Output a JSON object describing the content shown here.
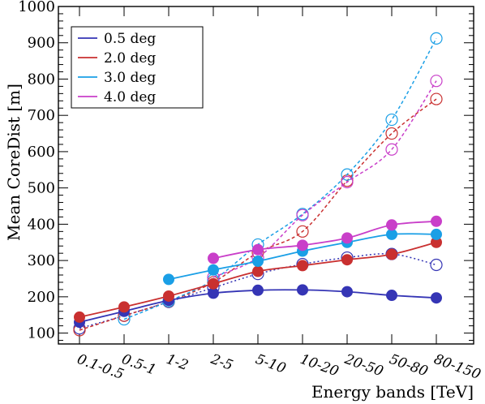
{
  "chart_data": {
    "type": "line",
    "xlabel": "Energy bands [TeV]",
    "ylabel": "Mean CoreDist [m]",
    "ylim": [
      70,
      1000
    ],
    "yticks": [
      100,
      200,
      300,
      400,
      500,
      600,
      700,
      800,
      900,
      1000
    ],
    "categories": [
      "0.1-0.5",
      "0.5-1",
      "1-2",
      "2-5",
      "5-10",
      "10-20",
      "20-50",
      "50-80",
      "80-150"
    ],
    "legend_position": "top-left",
    "series": [
      {
        "name": "0.5 deg",
        "color": "#3535b5",
        "marker": "filled",
        "line": "solid",
        "values": [
          130,
          160,
          190,
          210,
          218,
          219,
          214,
          204,
          197
        ]
      },
      {
        "name": "2.0 deg",
        "color": "#c93030",
        "marker": "filled",
        "line": "solid",
        "values": [
          144,
          172,
          202,
          236,
          270,
          286,
          302,
          317,
          350
        ]
      },
      {
        "name": "3.0 deg",
        "color": "#1a9fe6",
        "marker": "filled",
        "line": "solid",
        "values": [
          null,
          null,
          248,
          274,
          298,
          326,
          350,
          372,
          372
        ]
      },
      {
        "name": "4.0 deg",
        "color": "#c93fc9",
        "marker": "filled",
        "line": "solid",
        "values": [
          null,
          null,
          null,
          306,
          330,
          342,
          362,
          398,
          408
        ]
      },
      {
        "name": "",
        "color": "#3535b5",
        "marker": "open",
        "line": "dotted",
        "values": [
          113,
          148,
          186,
          225,
          263,
          290,
          308,
          318,
          288
        ]
      },
      {
        "name": "",
        "color": "#c93030",
        "marker": "open",
        "line": "dashed",
        "values": [
          108,
          148,
          187,
          240,
          322,
          380,
          520,
          650,
          745
        ]
      },
      {
        "name": "",
        "color": "#1a9fe6",
        "marker": "open",
        "line": "dashed",
        "values": [
          null,
          138,
          188,
          246,
          344,
          428,
          537,
          688,
          912
        ]
      },
      {
        "name": "",
        "color": "#c93fc9",
        "marker": "open",
        "line": "dashed",
        "values": [
          null,
          null,
          null,
          254,
          308,
          425,
          516,
          606,
          795
        ]
      }
    ]
  }
}
